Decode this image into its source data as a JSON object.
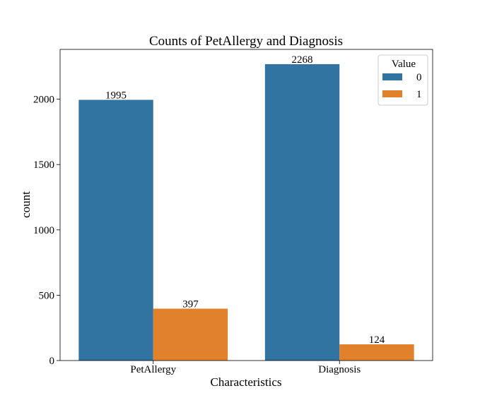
{
  "chart_data": {
    "type": "bar",
    "title": "Counts of PetAllergy and Diagnosis",
    "xlabel": "Characteristics",
    "ylabel": "count",
    "categories": [
      "PetAllergy",
      "Diagnosis"
    ],
    "series": [
      {
        "name": "0",
        "values": [
          1995,
          2268
        ],
        "color": "#3274a1"
      },
      {
        "name": "1",
        "values": [
          397,
          124
        ],
        "color": "#e1812c"
      }
    ],
    "ylim": [
      0,
      2381
    ],
    "yticks": [
      0,
      500,
      1000,
      1500,
      2000
    ],
    "grid": false,
    "legend": {
      "title": "Value",
      "placement": "top-right"
    }
  }
}
